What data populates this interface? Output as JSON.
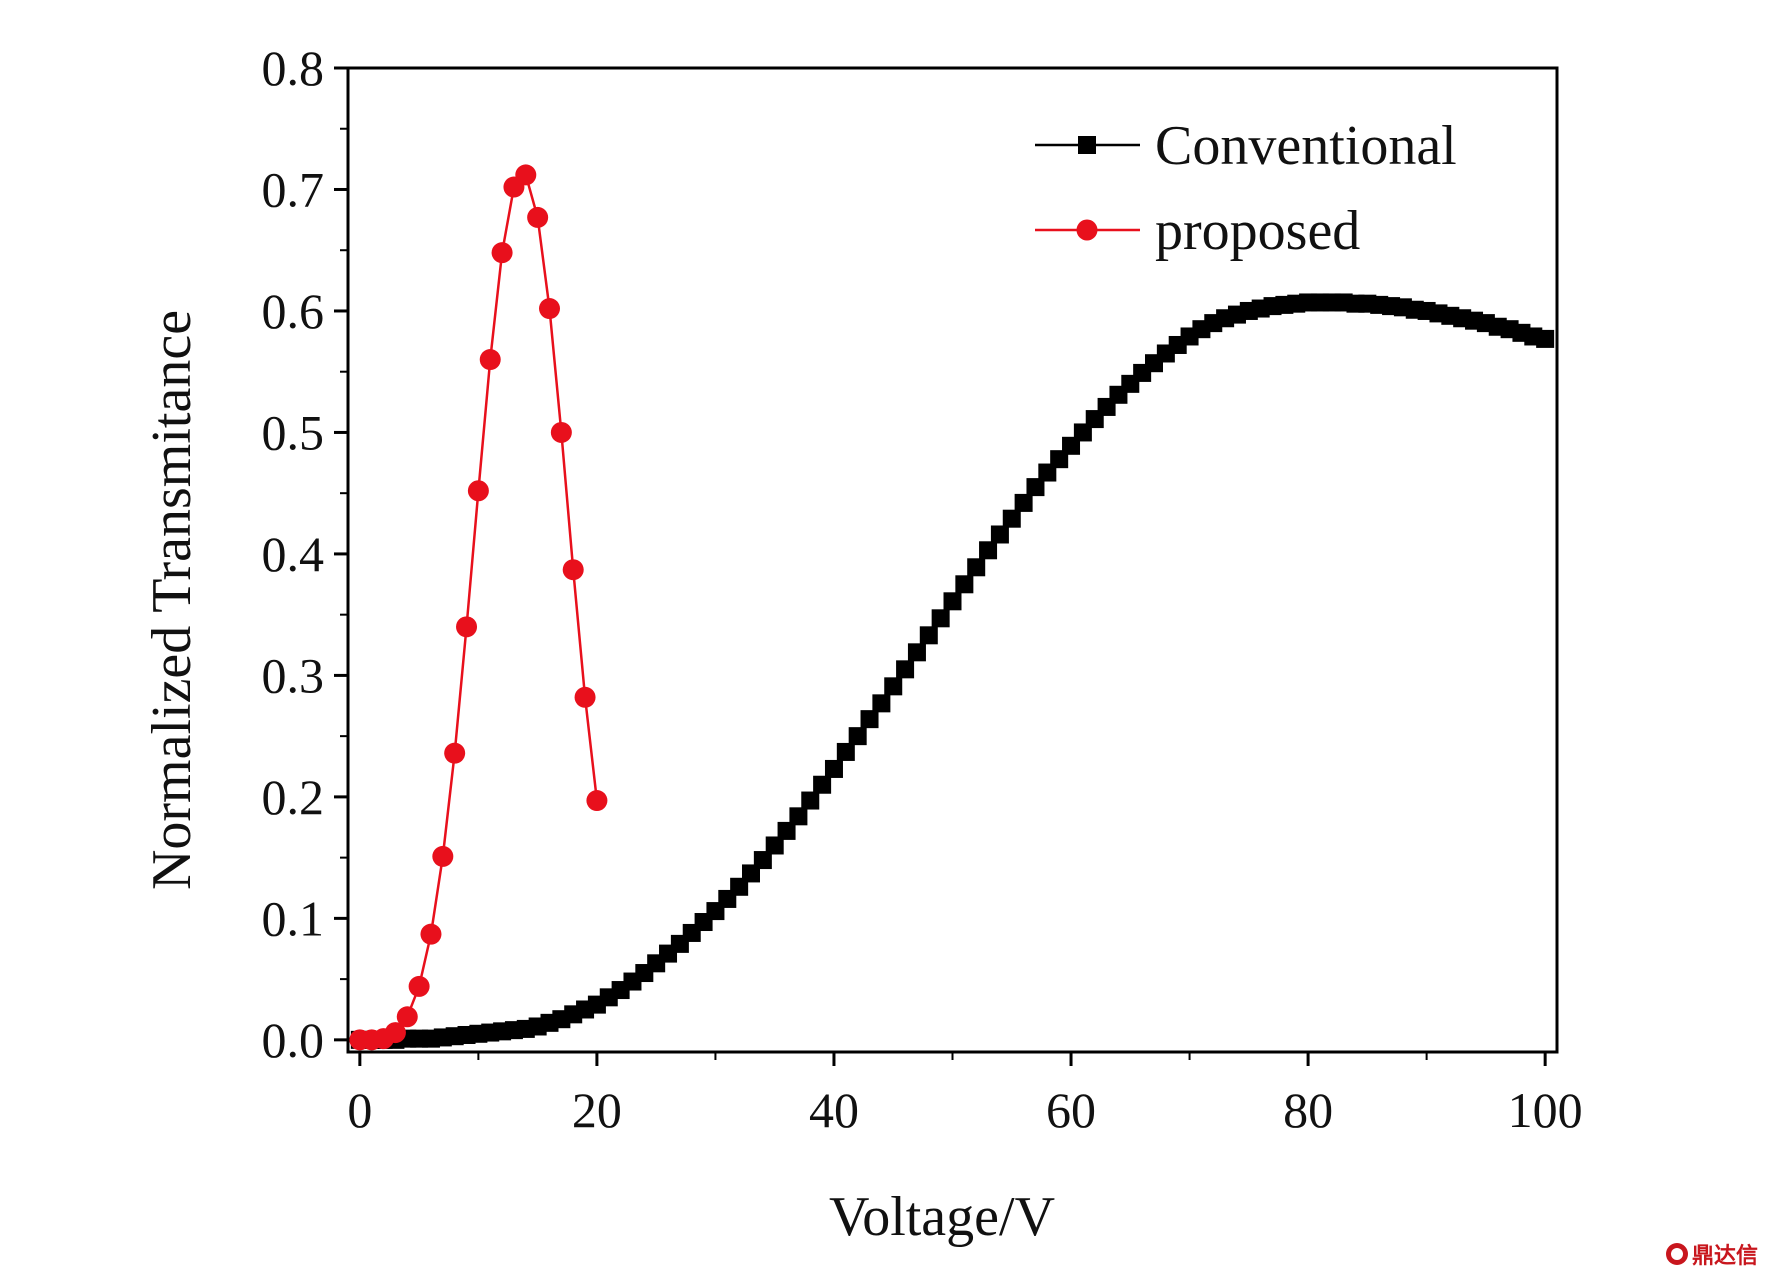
{
  "chart_data": {
    "type": "scatter",
    "xlabel": "Voltage/V",
    "ylabel": "Normalized Transmitance",
    "xlim": [
      -1,
      101
    ],
    "ylim": [
      -0.01,
      0.8
    ],
    "xticks": [
      0,
      20,
      40,
      60,
      80,
      100
    ],
    "yticks": [
      0.0,
      0.1,
      0.2,
      0.3,
      0.4,
      0.5,
      0.6,
      0.7,
      0.8
    ],
    "xtick_labels": [
      "0",
      "20",
      "40",
      "60",
      "80",
      "100"
    ],
    "ytick_labels": [
      "0.0",
      "0.1",
      "0.2",
      "0.3",
      "0.4",
      "0.5",
      "0.6",
      "0.7",
      "0.8"
    ],
    "legend_position": "top-right",
    "series": [
      {
        "name": "Conventional",
        "marker": "square",
        "color": "#000000",
        "x": [
          0,
          1,
          2,
          3,
          4,
          5,
          6,
          7,
          8,
          9,
          10,
          11,
          12,
          13,
          14,
          15,
          16,
          17,
          18,
          19,
          20,
          21,
          22,
          23,
          24,
          25,
          26,
          27,
          28,
          29,
          30,
          31,
          32,
          33,
          34,
          35,
          36,
          37,
          38,
          39,
          40,
          41,
          42,
          43,
          44,
          45,
          46,
          47,
          48,
          49,
          50,
          51,
          52,
          53,
          54,
          55,
          56,
          57,
          58,
          59,
          60,
          61,
          62,
          63,
          64,
          65,
          66,
          67,
          68,
          69,
          70,
          71,
          72,
          73,
          74,
          75,
          76,
          77,
          78,
          79,
          80,
          81,
          82,
          83,
          84,
          85,
          86,
          87,
          88,
          89,
          90,
          91,
          92,
          93,
          94,
          95,
          96,
          97,
          98,
          99,
          100
        ],
        "y": [
          0.0,
          0.0,
          0.0,
          0.0,
          0.001,
          0.001,
          0.001,
          0.002,
          0.003,
          0.004,
          0.005,
          0.006,
          0.007,
          0.008,
          0.009,
          0.011,
          0.014,
          0.017,
          0.021,
          0.025,
          0.029,
          0.035,
          0.041,
          0.048,
          0.055,
          0.063,
          0.071,
          0.079,
          0.088,
          0.097,
          0.106,
          0.116,
          0.126,
          0.137,
          0.148,
          0.16,
          0.172,
          0.184,
          0.197,
          0.21,
          0.223,
          0.237,
          0.25,
          0.264,
          0.277,
          0.291,
          0.305,
          0.319,
          0.333,
          0.347,
          0.361,
          0.375,
          0.389,
          0.403,
          0.416,
          0.429,
          0.442,
          0.455,
          0.467,
          0.478,
          0.489,
          0.5,
          0.511,
          0.521,
          0.531,
          0.54,
          0.549,
          0.557,
          0.565,
          0.572,
          0.579,
          0.585,
          0.59,
          0.594,
          0.597,
          0.6,
          0.602,
          0.604,
          0.605,
          0.606,
          0.607,
          0.607,
          0.607,
          0.607,
          0.606,
          0.606,
          0.605,
          0.604,
          0.603,
          0.601,
          0.6,
          0.598,
          0.596,
          0.594,
          0.592,
          0.59,
          0.587,
          0.585,
          0.582,
          0.579,
          0.577
        ]
      },
      {
        "name": "proposed",
        "marker": "circle",
        "color": "#e8101c",
        "x": [
          0,
          1,
          2,
          3,
          4,
          5,
          6,
          7,
          8,
          9,
          10,
          11,
          12,
          13,
          14,
          15,
          16,
          17,
          18,
          19,
          20
        ],
        "y": [
          0.0,
          0.0,
          0.001,
          0.006,
          0.019,
          0.044,
          0.087,
          0.151,
          0.236,
          0.34,
          0.452,
          0.56,
          0.648,
          0.702,
          0.712,
          0.677,
          0.602,
          0.5,
          0.387,
          0.282,
          0.197
        ]
      }
    ]
  },
  "watermark": {
    "text": "鼎达信",
    "color": "#c8161d"
  }
}
